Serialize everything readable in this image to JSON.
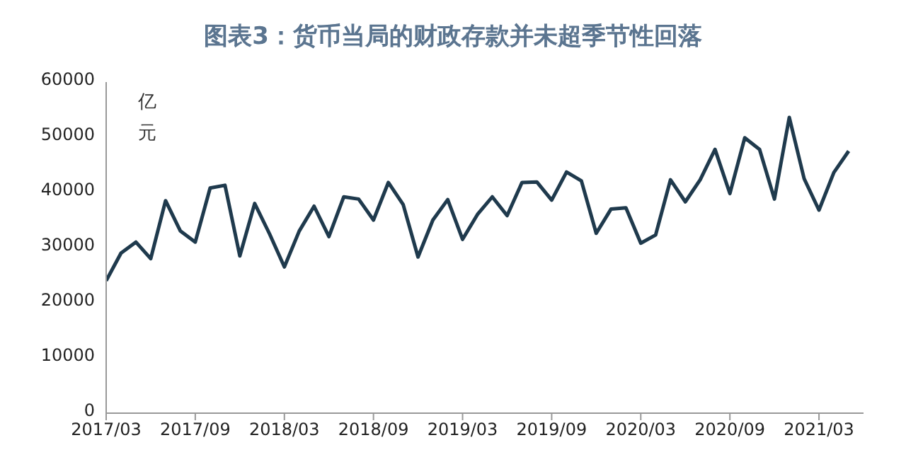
{
  "chart_data": {
    "type": "line",
    "title": "图表3：货币当局的财政存款并未超季节性回落",
    "ylabel": "亿元",
    "x": [
      "2017-03",
      "2017-04",
      "2017-05",
      "2017-06",
      "2017-07",
      "2017-08",
      "2017-09",
      "2017-10",
      "2017-11",
      "2017-12",
      "2018-01",
      "2018-02",
      "2018-03",
      "2018-04",
      "2018-05",
      "2018-06",
      "2018-07",
      "2018-08",
      "2018-09",
      "2018-10",
      "2018-11",
      "2018-12",
      "2019-01",
      "2019-02",
      "2019-03",
      "2019-04",
      "2019-05",
      "2019-06",
      "2019-07",
      "2019-08",
      "2019-09",
      "2019-10",
      "2019-11",
      "2019-12",
      "2020-01",
      "2020-02",
      "2020-03",
      "2020-04",
      "2020-05",
      "2020-06",
      "2020-07",
      "2020-08",
      "2020-09",
      "2020-10",
      "2020-11",
      "2020-12",
      "2021-01",
      "2021-02",
      "2021-03",
      "2021-04",
      "2021-05"
    ],
    "series": [
      {
        "color": "#1f3a4d",
        "values": [
          24000,
          29000,
          31000,
          28000,
          38500,
          33000,
          31000,
          40800,
          41300,
          28500,
          38000,
          32500,
          26500,
          33000,
          37500,
          32000,
          39200,
          38800,
          35000,
          41800,
          37800,
          28300,
          35000,
          38700,
          31500,
          36000,
          39200,
          35800,
          41800,
          41900,
          38600,
          43700,
          42100,
          32600,
          37000,
          37200,
          30800,
          32300,
          42300,
          38300,
          42300,
          47800,
          39800,
          49900,
          47800,
          38800,
          53600,
          42500,
          36800,
          43600,
          47500
        ]
      }
    ],
    "xlim": [
      "2017-03",
      "2021-06"
    ],
    "xticks": [
      {
        "value": "2017-03",
        "label": "2017/03"
      },
      {
        "value": "2017-09",
        "label": "2017/09"
      },
      {
        "value": "2018-03",
        "label": "2018/03"
      },
      {
        "value": "2018-09",
        "label": "2018/09"
      },
      {
        "value": "2019-03",
        "label": "2019/03"
      },
      {
        "value": "2019-09",
        "label": "2019/09"
      },
      {
        "value": "2020-03",
        "label": "2020/03"
      },
      {
        "value": "2020-09",
        "label": "2020/09"
      },
      {
        "value": "2021-03",
        "label": "2021/03"
      }
    ],
    "ylim": [
      0,
      60000
    ],
    "yticks": [
      0,
      10000,
      20000,
      30000,
      40000,
      50000,
      60000
    ],
    "grid": false,
    "legend": false,
    "marker": "none",
    "line_style": "solid"
  }
}
